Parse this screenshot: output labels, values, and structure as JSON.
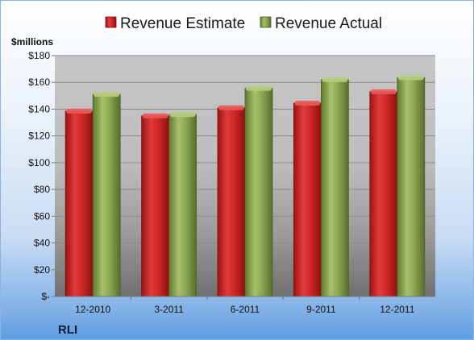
{
  "company": "RLI",
  "chart_data": {
    "type": "bar",
    "unit_label": "$millions",
    "categories": [
      "12-2010",
      "3-2011",
      "6-2011",
      "9-2011",
      "12-2011"
    ],
    "series": [
      {
        "name": "Revenue Estimate",
        "color": "#d42a2a",
        "values": [
          138.5,
          135.0,
          141.0,
          144.5,
          153.0
        ]
      },
      {
        "name": "Revenue Actual",
        "color": "#8faa55",
        "values": [
          151.0,
          136.0,
          155.5,
          162.0,
          163.5
        ]
      }
    ],
    "ylim": [
      0,
      180
    ],
    "yticks": [
      0,
      20,
      40,
      60,
      80,
      100,
      120,
      140,
      160,
      180
    ],
    "ytick_labels": [
      "$-",
      "$20",
      "$40",
      "$60",
      "$80",
      "$100",
      "$120",
      "$140",
      "$160",
      "$180"
    ],
    "grid": true,
    "legend_position": "top"
  }
}
